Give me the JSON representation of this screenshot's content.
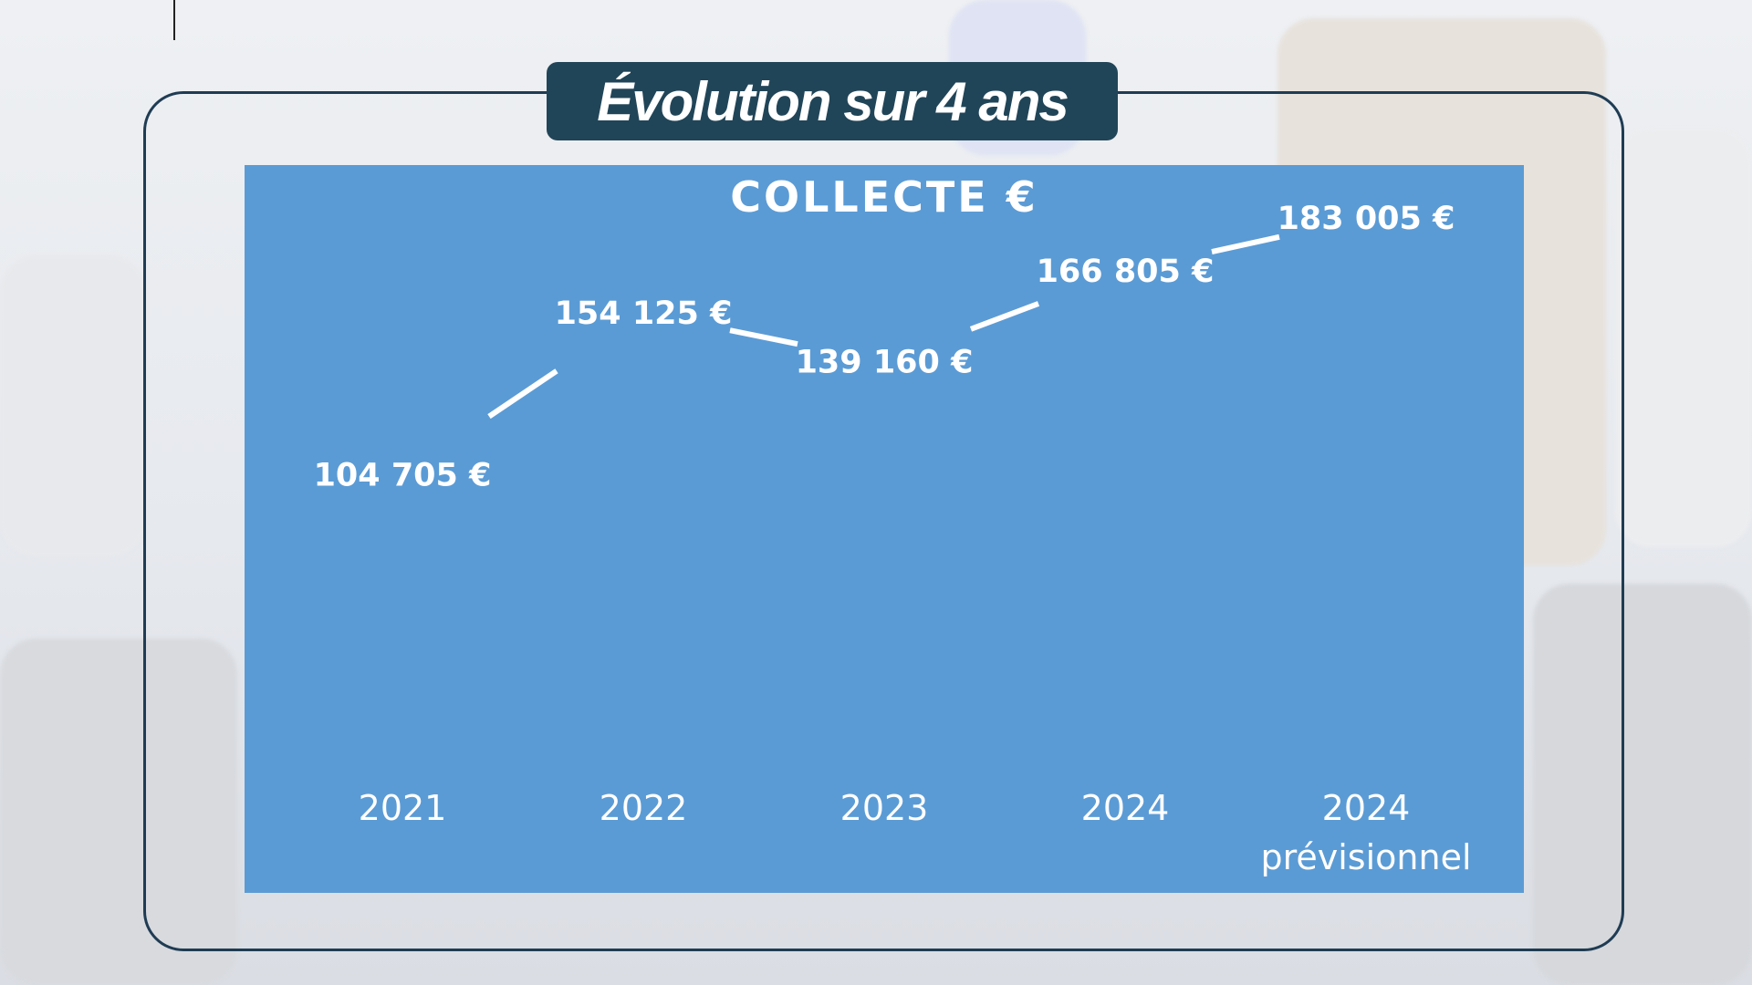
{
  "slide": {
    "title": "Évolution sur 4 ans"
  },
  "colors": {
    "panel": "#5b9bd5",
    "title_pill": "#214558",
    "frame_border": "#1f3c53"
  },
  "chart_data": {
    "type": "line",
    "title": "COLLECTE €",
    "categories": [
      [
        "2021"
      ],
      [
        "2022"
      ],
      [
        "2023"
      ],
      [
        "2024"
      ],
      [
        "2024",
        "prévisionnel"
      ]
    ],
    "series": [
      {
        "values": [
          104705,
          154125,
          139160,
          166805,
          183005
        ]
      }
    ],
    "data_labels": [
      "104 705 €",
      "154 125 €",
      "139 160 €",
      "166 805 €",
      "183 005 €"
    ],
    "grid": false,
    "legend": "none"
  }
}
